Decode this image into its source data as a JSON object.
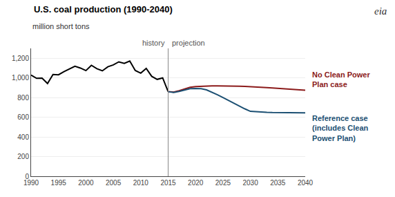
{
  "chart_data": {
    "type": "line",
    "title": "U.S. coal production (1990-2040)",
    "ylabel": "million short tons",
    "logo": "eia",
    "x": [
      1990,
      1991,
      1992,
      1993,
      1994,
      1995,
      1996,
      1997,
      1998,
      1999,
      2000,
      2001,
      2002,
      2003,
      2004,
      2005,
      2006,
      2007,
      2008,
      2009,
      2010,
      2011,
      2012,
      2013,
      2014,
      2015,
      2016,
      2017,
      2018,
      2019,
      2020,
      2021,
      2022,
      2023,
      2024,
      2025,
      2026,
      2027,
      2028,
      2029,
      2030,
      2031,
      2032,
      2033,
      2034,
      2035,
      2036,
      2037,
      2038,
      2039,
      2040
    ],
    "series": [
      {
        "color": "#000000",
        "values": [
          1029,
          996,
          997,
          943,
          1034,
          1032,
          1064,
          1090,
          1118,
          1100,
          1074,
          1128,
          1094,
          1072,
          1113,
          1132,
          1163,
          1147,
          1172,
          1075,
          1048,
          1096,
          1016,
          985,
          1000,
          860,
          null,
          null,
          null,
          null,
          null,
          null,
          null,
          null,
          null,
          null,
          null,
          null,
          null,
          null,
          null,
          null,
          null,
          null,
          null,
          null,
          null,
          null,
          null,
          null,
          null
        ]
      },
      {
        "color": "#8B1A1A",
        "label": "No Clean Power\nPlan case",
        "values": [
          null,
          null,
          null,
          null,
          null,
          null,
          null,
          null,
          null,
          null,
          null,
          null,
          null,
          null,
          null,
          null,
          null,
          null,
          null,
          null,
          null,
          null,
          null,
          null,
          null,
          860,
          855,
          870,
          890,
          905,
          912,
          915,
          916,
          918,
          918,
          916,
          916,
          916,
          915,
          914,
          912,
          910,
          908,
          902,
          898,
          893,
          890,
          886,
          882,
          878,
          875
        ]
      },
      {
        "color": "#1B4F72",
        "label": "Reference case\n(includes Clean\nPower Plan)",
        "values": [
          null,
          null,
          null,
          null,
          null,
          null,
          null,
          null,
          null,
          null,
          null,
          null,
          null,
          null,
          null,
          null,
          null,
          null,
          null,
          null,
          null,
          null,
          null,
          null,
          null,
          860,
          852,
          862,
          878,
          890,
          892,
          890,
          878,
          855,
          828,
          800,
          770,
          740,
          712,
          685,
          660,
          655,
          652,
          650,
          648,
          647,
          646,
          645,
          645,
          644,
          644
        ]
      }
    ],
    "divider": {
      "x": 2015,
      "labels": [
        "history",
        "projection"
      ]
    },
    "xlim": [
      1990,
      2040
    ],
    "xticks": [
      1990,
      1995,
      2000,
      2005,
      2010,
      2015,
      2020,
      2025,
      2030,
      2035,
      2040
    ],
    "ylim": [
      0,
      1300
    ],
    "yticks": [
      0,
      200,
      400,
      600,
      800,
      {
        "value": 1000,
        "label": "1,000"
      },
      {
        "value": 1200,
        "label": "1,200"
      }
    ],
    "grid": "y"
  }
}
